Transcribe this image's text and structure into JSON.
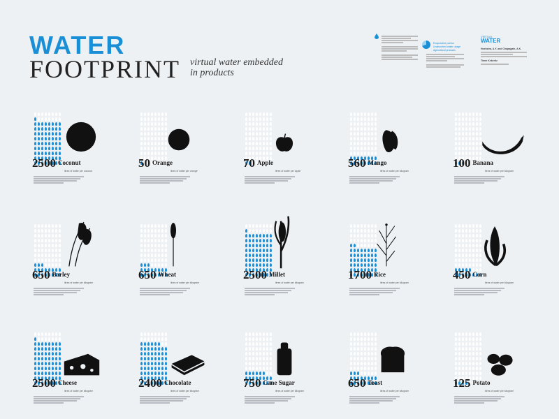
{
  "header": {
    "title_line1": "WATER",
    "title_line2": "FOOTPRINT",
    "subtitle": "virtual water embedded in products"
  },
  "colors": {
    "accent": "#1a8fd6",
    "empty_drop": "#ffffff",
    "silhouette": "#111111"
  },
  "units": {
    "coconut": "litres of water per coconut",
    "orange": "litres of water per orange",
    "apple": "litres of water per apple",
    "mango": "litres of water per kilogram",
    "banana": "litres of water per kilogram",
    "barley": "litres of water per kilogram",
    "wheat": "litres of water per kilogram",
    "millet": "litres of water per kilogram",
    "rice": "litres of water per kilogram",
    "corn": "litres of water per kilogram",
    "cheese": "litres of water per kilogram",
    "chocolate": "litres of water per kilogram",
    "cane_sugar": "litres of water per kilogram",
    "toast": "litres of water per kilogram",
    "potato": "litres of water per kilogram"
  },
  "products": [
    {
      "key": "coconut",
      "value": "2500",
      "name": "Coconut",
      "icon": "coconut-icon"
    },
    {
      "key": "orange",
      "value": "50",
      "name": "Orange",
      "icon": "orange-icon"
    },
    {
      "key": "apple",
      "value": "70",
      "name": "Apple",
      "icon": "apple-icon"
    },
    {
      "key": "mango",
      "value": "560",
      "name": "Mango",
      "icon": "mango-icon"
    },
    {
      "key": "banana",
      "value": "100",
      "name": "Banana",
      "icon": "banana-icon"
    },
    {
      "key": "barley",
      "value": "650",
      "name": "Barley",
      "icon": "barley-icon"
    },
    {
      "key": "wheat",
      "value": "650",
      "name": "Wheat",
      "icon": "wheat-icon"
    },
    {
      "key": "millet",
      "value": "2500",
      "name": "Millet",
      "icon": "millet-icon"
    },
    {
      "key": "rice",
      "value": "1700",
      "name": "Rice",
      "icon": "rice-icon"
    },
    {
      "key": "corn",
      "value": "450",
      "name": "Corn",
      "icon": "corn-icon"
    },
    {
      "key": "cheese",
      "value": "2500",
      "name": "Cheese",
      "icon": "cheese-icon"
    },
    {
      "key": "chocolate",
      "value": "2400",
      "name": "Chocolate",
      "icon": "chocolate-icon"
    },
    {
      "key": "cane_sugar",
      "value": "750",
      "name": "Cane Sugar",
      "icon": "cane-sugar-icon"
    },
    {
      "key": "toast",
      "value": "650",
      "name": "Toast",
      "icon": "toast-icon"
    },
    {
      "key": "potato",
      "value": "125",
      "name": "Potato",
      "icon": "potato-icon"
    }
  ],
  "legend": {
    "items": [
      "Evaporative portion",
      "Unabsorbed water usage",
      "Agricultural products"
    ]
  },
  "credits": {
    "logo_line1": "VIRTUAL",
    "logo_line2": "WATER",
    "source": "Hoekstra, A.Y. and Chapagain, A.K.",
    "design": "Timm Kekeritz"
  }
}
